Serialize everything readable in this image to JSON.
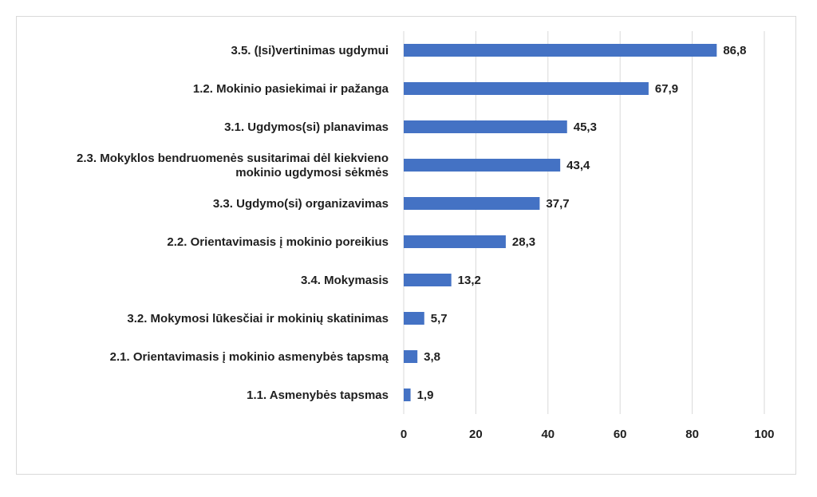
{
  "chart_data": {
    "type": "bar",
    "orientation": "horizontal",
    "categories": [
      [
        "3.5. (Įsi)vertinimas ugdymui"
      ],
      [
        "1.2. Mokinio pasiekimai  ir pažanga"
      ],
      [
        "3.1. Ugdymos(si) planavimas"
      ],
      [
        "2.3. Mokyklos bendruomenės susitarimai dėl kiekvieno",
        "mokinio ugdymosi sėkmės"
      ],
      [
        "3.3. Ugdymo(si) organizavimas"
      ],
      [
        "2.2. Orientavimasis į mokinio poreikius"
      ],
      [
        "3.4. Mokymasis"
      ],
      [
        "3.2. Mokymosi lūkesčiai ir mokinių skatinimas"
      ],
      [
        "2.1. Orientavimasis į mokinio asmenybės tapsmą"
      ],
      [
        "1.1. Asmenybės tapsmas"
      ]
    ],
    "values": [
      86.8,
      67.9,
      45.3,
      43.4,
      37.7,
      28.3,
      13.2,
      5.7,
      3.8,
      1.9
    ],
    "value_labels": [
      "86,8",
      "67,9",
      "45,3",
      "43,4",
      "37,7",
      "28,3",
      "13,2",
      "5,7",
      "3,8",
      "1,9"
    ],
    "xlim": [
      0,
      100
    ],
    "xticks": [
      0,
      20,
      40,
      60,
      80,
      100
    ],
    "grid": "vertical",
    "legend": "none",
    "bar_color": "#4472c4",
    "grid_color": "#d9d9d9",
    "title": "",
    "xlabel": "",
    "ylabel": ""
  }
}
